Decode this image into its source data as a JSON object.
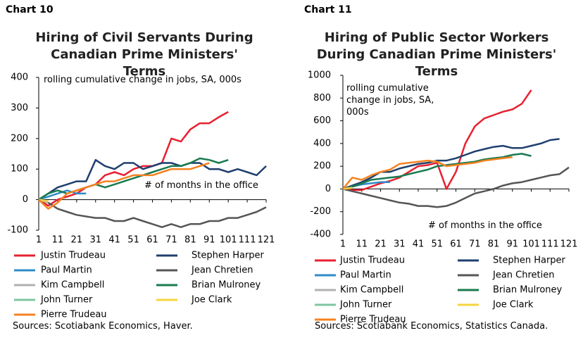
{
  "chart_data": [
    {
      "type": "line",
      "label": "Chart 10",
      "title": "Hiring of Civil Servants During Canadian Prime Ministers' Terms",
      "ylabel": "rolling cumulative change in jobs, SA, 000s",
      "xlabel": "# of months in the office",
      "source": "Sources: Scotiabank Economics, Haver.",
      "xlim": [
        1,
        121
      ],
      "ylim": [
        -100,
        400
      ],
      "xticks": [
        1,
        11,
        21,
        31,
        41,
        51,
        61,
        71,
        81,
        91,
        101,
        111,
        121
      ],
      "yticks": [
        -100,
        0,
        100,
        200,
        300,
        400
      ],
      "x": [
        1,
        6,
        11,
        16,
        21,
        26,
        31,
        36,
        41,
        46,
        51,
        56,
        61,
        66,
        71,
        76,
        81,
        86,
        91,
        96,
        101,
        106,
        111,
        116,
        121
      ],
      "series": [
        {
          "name": "Justin Trudeau",
          "color": "#e8202f",
          "values": [
            0,
            -20,
            0,
            10,
            20,
            40,
            50,
            80,
            90,
            80,
            100,
            110,
            110,
            120,
            200,
            190,
            230,
            250,
            250,
            270,
            287,
            null,
            null,
            null,
            null
          ]
        },
        {
          "name": "Stephen Harper",
          "color": "#1f3f6e",
          "values": [
            0,
            20,
            40,
            50,
            60,
            60,
            130,
            110,
            100,
            120,
            120,
            100,
            110,
            120,
            120,
            110,
            120,
            120,
            100,
            100,
            90,
            100,
            90,
            80,
            110
          ]
        },
        {
          "name": "Paul Martin",
          "color": "#2e8bc9",
          "values": [
            0,
            10,
            20,
            30,
            20,
            20,
            null,
            null,
            null,
            null,
            null,
            null,
            null,
            null,
            null,
            null,
            null,
            null,
            null,
            null,
            null,
            null,
            null,
            null,
            null
          ]
        },
        {
          "name": "Jean Chretien",
          "color": "#555555",
          "values": [
            0,
            -10,
            -30,
            -40,
            -50,
            -55,
            -60,
            -60,
            -70,
            -70,
            -60,
            -70,
            -80,
            -90,
            -80,
            -90,
            -80,
            -80,
            -70,
            -70,
            -60,
            -60,
            -50,
            -40,
            -25
          ]
        },
        {
          "name": "Kim Campbell",
          "color": "#b0b0b0",
          "values": [
            0,
            -10,
            null,
            null,
            null,
            null,
            null,
            null,
            null,
            null,
            null,
            null,
            null,
            null,
            null,
            null,
            null,
            null,
            null,
            null,
            null,
            null,
            null,
            null,
            null
          ]
        },
        {
          "name": "Brian Mulroney",
          "color": "#1a7a4f",
          "values": [
            0,
            20,
            30,
            20,
            30,
            40,
            50,
            40,
            50,
            60,
            70,
            80,
            90,
            100,
            110,
            110,
            120,
            135,
            130,
            120,
            130,
            null,
            null,
            null,
            null
          ]
        },
        {
          "name": "John Turner",
          "color": "#7fc7a0",
          "values": [
            0,
            null,
            null,
            null,
            null,
            null,
            null,
            null,
            null,
            null,
            null,
            null,
            null,
            null,
            null,
            null,
            null,
            null,
            null,
            null,
            null,
            null,
            null,
            null,
            null
          ]
        },
        {
          "name": "Joe Clark",
          "color": "#f5d640",
          "values": [
            0,
            -5,
            null,
            null,
            null,
            null,
            null,
            null,
            null,
            null,
            null,
            null,
            null,
            null,
            null,
            null,
            null,
            null,
            null,
            null,
            null,
            null,
            null,
            null,
            null
          ]
        },
        {
          "name": "Pierre Trudeau",
          "color": "#f58220",
          "values": [
            0,
            -30,
            -10,
            20,
            30,
            40,
            50,
            60,
            60,
            70,
            80,
            80,
            80,
            90,
            100,
            100,
            100,
            110,
            120,
            null,
            null,
            null,
            null,
            null,
            null
          ]
        }
      ]
    },
    {
      "type": "line",
      "label": "Chart 11",
      "title": "Hiring of Public Sector Workers During Canadian Prime Ministers' Terms",
      "ylabel": "rolling cumulative change in jobs, SA, 000s",
      "xlabel": "# of months in the office",
      "source": "Sources: Scotiabank Economics, Statistics Canada.",
      "xlim": [
        1,
        121
      ],
      "ylim": [
        -400,
        1000
      ],
      "xticks": [
        1,
        11,
        21,
        31,
        41,
        51,
        61,
        71,
        81,
        91,
        101,
        111,
        121
      ],
      "yticks": [
        -400,
        -200,
        0,
        200,
        400,
        600,
        800,
        1000
      ],
      "x": [
        1,
        6,
        11,
        16,
        21,
        26,
        31,
        36,
        41,
        46,
        51,
        56,
        61,
        66,
        71,
        76,
        81,
        86,
        91,
        96,
        101,
        106,
        111,
        116,
        121
      ],
      "series": [
        {
          "name": "Justin Trudeau",
          "color": "#e8202f",
          "values": [
            0,
            -10,
            -10,
            20,
            50,
            70,
            100,
            150,
            200,
            210,
            230,
            0,
            150,
            400,
            550,
            620,
            650,
            680,
            700,
            750,
            870,
            null,
            null,
            null,
            null
          ]
        },
        {
          "name": "Stephen Harper",
          "color": "#1f3f6e",
          "values": [
            0,
            30,
            60,
            100,
            150,
            150,
            180,
            200,
            220,
            230,
            250,
            250,
            270,
            300,
            330,
            350,
            370,
            380,
            360,
            360,
            380,
            400,
            430,
            440,
            null
          ]
        },
        {
          "name": "Paul Martin",
          "color": "#2e8bc9",
          "values": [
            0,
            20,
            40,
            50,
            60,
            60,
            null,
            null,
            null,
            null,
            null,
            null,
            null,
            null,
            null,
            null,
            null,
            null,
            null,
            null,
            null,
            null,
            null,
            null,
            null
          ]
        },
        {
          "name": "Jean Chretien",
          "color": "#555555",
          "values": [
            0,
            -20,
            -40,
            -60,
            -80,
            -100,
            -120,
            -130,
            -150,
            -150,
            -160,
            -150,
            -120,
            -80,
            -40,
            -20,
            0,
            30,
            50,
            60,
            80,
            100,
            120,
            130,
            190
          ]
        },
        {
          "name": "Kim Campbell",
          "color": "#b0b0b0",
          "values": [
            0,
            null,
            null,
            null,
            null,
            null,
            null,
            null,
            null,
            null,
            null,
            null,
            null,
            null,
            null,
            null,
            null,
            null,
            null,
            null,
            null,
            null,
            null,
            null,
            null
          ]
        },
        {
          "name": "Brian Mulroney",
          "color": "#1a7a4f",
          "values": [
            0,
            20,
            50,
            80,
            90,
            100,
            110,
            130,
            150,
            170,
            200,
            210,
            220,
            230,
            240,
            260,
            270,
            280,
            300,
            310,
            290,
            null,
            null,
            null,
            null
          ]
        },
        {
          "name": "John Turner",
          "color": "#7fc7a0",
          "values": [
            0,
            null,
            null,
            null,
            null,
            null,
            null,
            null,
            null,
            null,
            null,
            null,
            null,
            null,
            null,
            null,
            null,
            null,
            null,
            null,
            null,
            null,
            null,
            null,
            null
          ]
        },
        {
          "name": "Joe Clark",
          "color": "#f5d640",
          "values": [
            0,
            10,
            null,
            null,
            null,
            null,
            null,
            null,
            null,
            null,
            null,
            null,
            null,
            null,
            null,
            null,
            null,
            null,
            null,
            null,
            null,
            null,
            null,
            null,
            null
          ]
        },
        {
          "name": "Pierre Trudeau",
          "color": "#f58220",
          "values": [
            0,
            100,
            80,
            120,
            150,
            170,
            220,
            230,
            240,
            250,
            240,
            200,
            210,
            220,
            230,
            250,
            260,
            270,
            280,
            null,
            null,
            null,
            null,
            null,
            null
          ]
        }
      ]
    }
  ]
}
